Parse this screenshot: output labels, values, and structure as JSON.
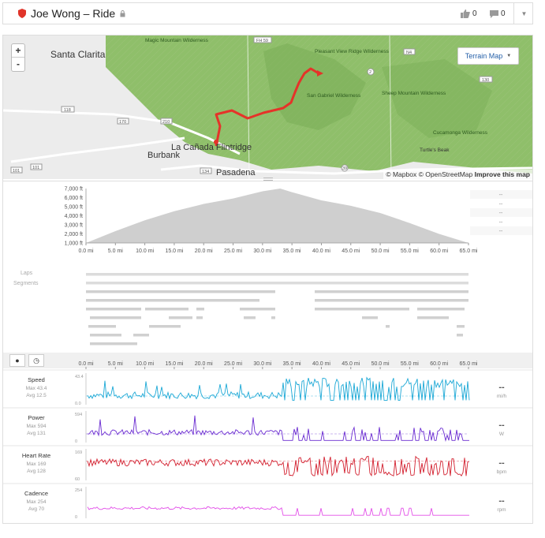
{
  "header": {
    "title": "Joe Wong – Ride",
    "kudos_count": "0",
    "comments_count": "0"
  },
  "map": {
    "zoom_in": "+",
    "zoom_out": "-",
    "layer_button": "Terrain Map",
    "attribution_mapbox": "© Mapbox",
    "attribution_osm": "© OpenStreetMap",
    "improve": "Improve this map",
    "places": [
      {
        "name": "Santa Clarita"
      },
      {
        "name": "Magic Mountain Wilderness"
      },
      {
        "name": "Pleasant View Ridge Wilderness"
      },
      {
        "name": "San Gabriel Wilderness"
      },
      {
        "name": "Sheep Mountain Wilderness"
      },
      {
        "name": "Cucamonga Wilderness"
      },
      {
        "name": "Turtle's Beak"
      },
      {
        "name": "La Cañada Flintridge"
      },
      {
        "name": "Burbank"
      },
      {
        "name": "Pasadena"
      }
    ],
    "roads": [
      "FH 59",
      "N4",
      "2",
      "118",
      "210",
      "170",
      "101",
      "134",
      "39",
      "130"
    ]
  },
  "elevation": {
    "y_ticks": [
      "7,000 ft",
      "6,000 ft",
      "5,000 ft",
      "4,000 ft",
      "3,000 ft",
      "2,000 ft",
      "1,000 ft"
    ],
    "x_ticks": [
      "0.0 mi",
      "5.0 mi",
      "10.0 mi",
      "15.0 mi",
      "20.0 mi",
      "25.0 mi",
      "30.0 mi",
      "35.0 mi",
      "40.0 mi",
      "45.0 mi",
      "50.0 mi",
      "55.0 mi",
      "60.0 mi",
      "65.0 mi"
    ],
    "right_values": [
      "--",
      "--",
      "--",
      "--",
      "--"
    ]
  },
  "laps_label": "Laps",
  "segments_label": "Segments",
  "streams": {
    "x_ticks": [
      "0.0 mi",
      "5.0 mi",
      "10.0 mi",
      "15.0 mi",
      "20.0 mi",
      "25.0 mi",
      "30.0 mi",
      "35.0 mi",
      "40.0 mi",
      "45.0 mi",
      "50.0 mi",
      "55.0 mi",
      "60.0 mi",
      "65.0 mi"
    ],
    "rows": [
      {
        "name": "Speed",
        "max": "Max 43.4",
        "avg": "Avg 12.5",
        "ymax": "43.4",
        "ymin": "0.0",
        "value": "--",
        "unit": "mi/h",
        "color": "#1ba8d6"
      },
      {
        "name": "Power",
        "max": "Max 594",
        "avg": "Avg 131",
        "ymax": "594",
        "ymin": "0",
        "value": "--",
        "unit": "W",
        "color": "#6a2bd1"
      },
      {
        "name": "Heart Rate",
        "max": "Max 169",
        "avg": "Avg 128",
        "ymax": "169",
        "ymin": "60",
        "value": "--",
        "unit": "bpm",
        "color": "#d3202f"
      },
      {
        "name": "Cadence",
        "max": "Max 254",
        "avg": "Avg 70",
        "ymax": "254",
        "ymin": "0",
        "value": "--",
        "unit": "rpm",
        "color": "#e24de8"
      }
    ]
  },
  "chart_data": {
    "type": "area",
    "title": "",
    "xlabel": "",
    "ylabel": "",
    "x": [
      0,
      5,
      10,
      15,
      20,
      25,
      30,
      33,
      35,
      40,
      45,
      50,
      55,
      60,
      65
    ],
    "series": [
      {
        "values": [
          1000,
          2300,
          3500,
          4500,
          5300,
          5900,
          6700,
          7000,
          6600,
          5700,
          5100,
          4300,
          3200,
          2000,
          1000
        ]
      }
    ],
    "xlim": [
      0,
      65
    ],
    "ylim": [
      1000,
      7000
    ]
  }
}
